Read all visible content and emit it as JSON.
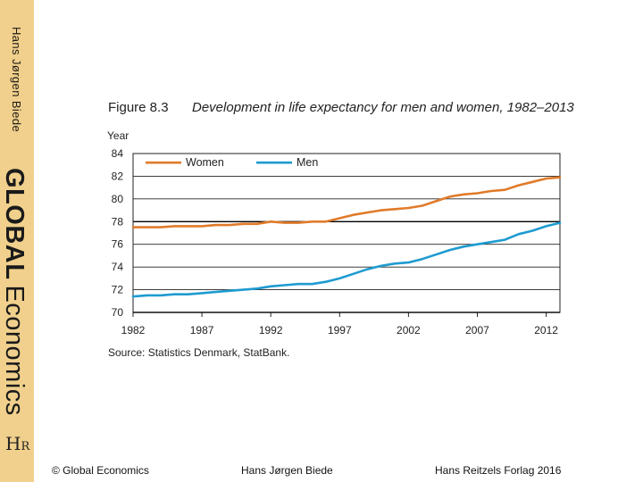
{
  "sidebar": {
    "author": "Hans Jørgen Biede",
    "brand_global": "GLOBAL",
    "brand_economics": "Economics",
    "logo_h": "H",
    "logo_r": "R"
  },
  "figure": {
    "label": "Figure 8.3",
    "title": "Development in life expectancy for men and women, 1982–2013",
    "source": "Source: Statistics Denmark, StatBank."
  },
  "chart_data": {
    "type": "line",
    "title": "Development in life expectancy for men and women, 1982–2013",
    "xlabel": "",
    "ylabel": "Year",
    "xlim": [
      1982,
      2013
    ],
    "ylim": [
      70,
      84
    ],
    "x_ticks": [
      1982,
      1987,
      1992,
      1997,
      2002,
      2007,
      2012
    ],
    "y_ticks": [
      70,
      72,
      74,
      76,
      78,
      80,
      82,
      84
    ],
    "grid": true,
    "legend_position": "top-left",
    "x": [
      1982,
      1983,
      1984,
      1985,
      1986,
      1987,
      1988,
      1989,
      1990,
      1991,
      1992,
      1993,
      1994,
      1995,
      1996,
      1997,
      1998,
      1999,
      2000,
      2001,
      2002,
      2003,
      2004,
      2005,
      2006,
      2007,
      2008,
      2009,
      2010,
      2011,
      2012,
      2013
    ],
    "series": [
      {
        "name": "Women",
        "color": "#e07b2a",
        "values": [
          77.5,
          77.5,
          77.5,
          77.6,
          77.6,
          77.6,
          77.7,
          77.7,
          77.8,
          77.8,
          78.0,
          77.9,
          77.9,
          78.0,
          78.0,
          78.3,
          78.6,
          78.8,
          79.0,
          79.1,
          79.2,
          79.4,
          79.8,
          80.2,
          80.4,
          80.5,
          80.7,
          80.8,
          81.2,
          81.5,
          81.8,
          81.9
        ]
      },
      {
        "name": "Men",
        "color": "#1e9bd0",
        "values": [
          71.4,
          71.5,
          71.5,
          71.6,
          71.6,
          71.7,
          71.8,
          71.9,
          72.0,
          72.1,
          72.3,
          72.4,
          72.5,
          72.5,
          72.7,
          73.0,
          73.4,
          73.8,
          74.1,
          74.3,
          74.4,
          74.7,
          75.1,
          75.5,
          75.8,
          76.0,
          76.2,
          76.4,
          76.9,
          77.2,
          77.6,
          77.9
        ]
      }
    ]
  },
  "footer": {
    "left": "© Global Economics",
    "center": "Hans Jørgen Biede",
    "right": "Hans Reitzels Forlag 2016"
  }
}
